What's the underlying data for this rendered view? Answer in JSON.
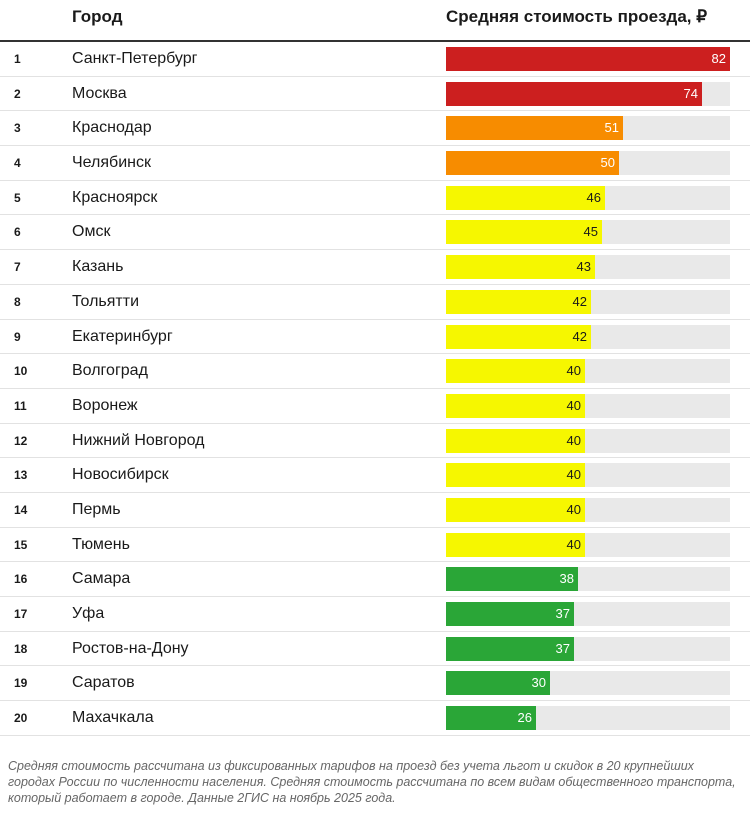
{
  "header": {
    "city": "Город",
    "cost": "Средняя стоимость проезда, ₽"
  },
  "chart_data": {
    "type": "bar",
    "orientation": "horizontal",
    "title": "Средняя стоимость проезда, ₽",
    "xlim": [
      0,
      82
    ],
    "ranks": [
      "1",
      "2",
      "3",
      "4",
      "5",
      "6",
      "7",
      "8",
      "9",
      "10",
      "11",
      "12",
      "13",
      "14",
      "15",
      "16",
      "17",
      "18",
      "19",
      "20"
    ],
    "categories": [
      "Санкт-Петербург",
      "Москва",
      "Краснодар",
      "Челябинск",
      "Красноярск",
      "Омск",
      "Казань",
      "Тольятти",
      "Екатеринбург",
      "Волгоград",
      "Воронеж",
      "Нижний Новгород",
      "Новосибирск",
      "Пермь",
      "Тюмень",
      "Самара",
      "Уфа",
      "Ростов-на-Дону",
      "Саратов",
      "Махачкала"
    ],
    "values": [
      82,
      74,
      51,
      50,
      46,
      45,
      43,
      42,
      42,
      40,
      40,
      40,
      40,
      40,
      40,
      38,
      37,
      37,
      30,
      26
    ],
    "bar_colors": [
      "#cc1f1f",
      "#cc1f1f",
      "#f78c00",
      "#f78c00",
      "#f6f700",
      "#f6f700",
      "#f6f700",
      "#f6f700",
      "#f6f700",
      "#f6f700",
      "#f6f700",
      "#f6f700",
      "#f6f700",
      "#f6f700",
      "#f6f700",
      "#2aa637",
      "#2aa637",
      "#2aa637",
      "#2aa637",
      "#2aa637"
    ],
    "label_colors": [
      "#ffffff",
      "#ffffff",
      "#ffffff",
      "#ffffff",
      "#1a1a1a",
      "#1a1a1a",
      "#1a1a1a",
      "#1a1a1a",
      "#1a1a1a",
      "#1a1a1a",
      "#1a1a1a",
      "#1a1a1a",
      "#1a1a1a",
      "#1a1a1a",
      "#1a1a1a",
      "#ffffff",
      "#ffffff",
      "#ffffff",
      "#ffffff",
      "#ffffff"
    ],
    "track_color": "#e9e9e9"
  },
  "footnote": "Средняя стоимость рассчитана из фиксированных тарифов на проезд без учета льгот и скидок в 20 крупнейших городах России по численности населения. Средняя стоимость рассчитана по всем видам общественного транспорта, который работает в городе. Данные 2ГИС на ноябрь 2025 года."
}
